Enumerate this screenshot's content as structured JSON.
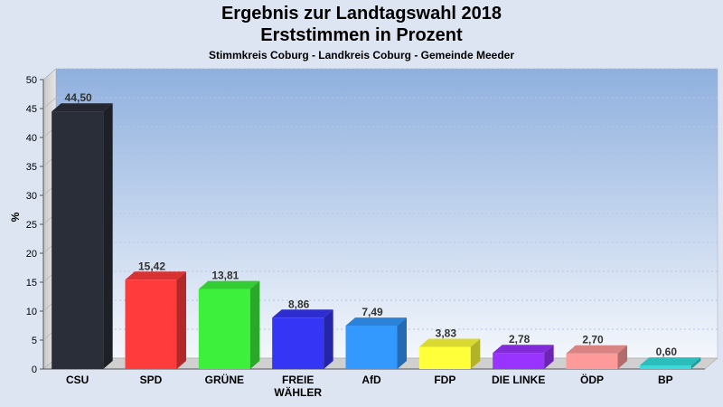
{
  "chart_data": {
    "type": "bar",
    "title": "Ergebnis zur Landtagswahl 2018",
    "subtitle": "Erststimmen in Prozent",
    "caption": "Stimmkreis Coburg - Landkreis Coburg - Gemeinde Meeder",
    "ylabel": "%",
    "ylim": [
      0,
      50
    ],
    "yticks": [
      0,
      5,
      10,
      15,
      20,
      25,
      30,
      35,
      40,
      45,
      50
    ],
    "grid": true,
    "categories": [
      [
        "CSU"
      ],
      [
        "SPD"
      ],
      [
        "GRÜNE"
      ],
      [
        "FREIE",
        "WÄHLER"
      ],
      [
        "AfD"
      ],
      [
        "FDP"
      ],
      [
        "DIE LINKE"
      ],
      [
        "ÖDP"
      ],
      [
        "BP"
      ]
    ],
    "values": [
      44.5,
      15.42,
      13.81,
      8.86,
      7.49,
      3.83,
      2.78,
      2.7,
      0.6
    ],
    "value_labels": [
      "44,50",
      "15,42",
      "13,81",
      "8,86",
      "7,49",
      "3,83",
      "2,78",
      "2,70",
      "0,60"
    ],
    "colors": [
      "#2a2e38",
      "#ff3b3b",
      "#3cf03c",
      "#3535f5",
      "#3399ff",
      "#ffff3a",
      "#9933ff",
      "#ff9a9a",
      "#33dddd"
    ]
  }
}
